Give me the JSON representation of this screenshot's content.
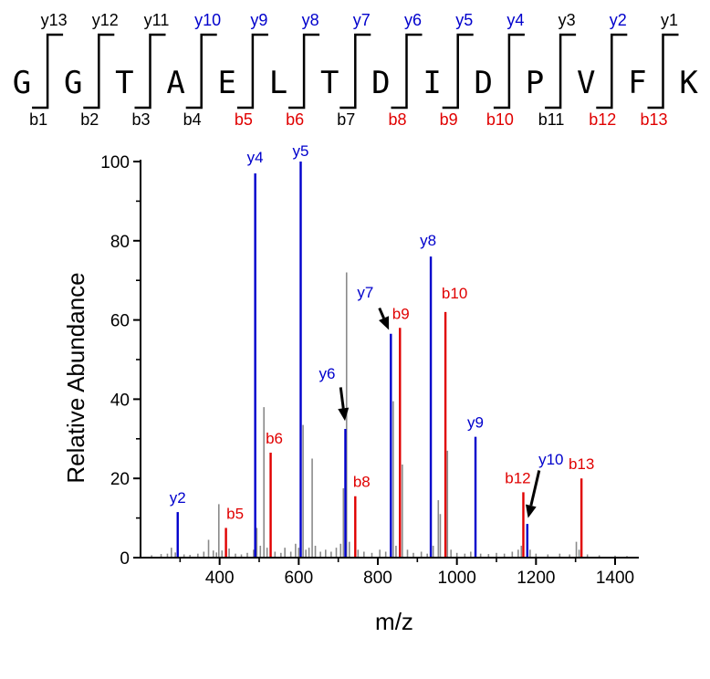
{
  "colors": {
    "y": "#0000cc",
    "b": "#e00000",
    "plain": "#000000",
    "noise": "#8a8a8a"
  },
  "sequence": {
    "residues": [
      "G",
      "G",
      "T",
      "A",
      "E",
      "L",
      "T",
      "D",
      "I",
      "D",
      "P",
      "V",
      "F",
      "K"
    ],
    "y_ions": [
      {
        "label": "y13",
        "observed": false
      },
      {
        "label": "y12",
        "observed": false
      },
      {
        "label": "y11",
        "observed": false
      },
      {
        "label": "y10",
        "observed": true
      },
      {
        "label": "y9",
        "observed": true
      },
      {
        "label": "y8",
        "observed": true
      },
      {
        "label": "y7",
        "observed": true
      },
      {
        "label": "y6",
        "observed": true
      },
      {
        "label": "y5",
        "observed": true
      },
      {
        "label": "y4",
        "observed": true
      },
      {
        "label": "y3",
        "observed": false
      },
      {
        "label": "y2",
        "observed": true
      },
      {
        "label": "y1",
        "observed": false
      }
    ],
    "b_ions": [
      {
        "label": "b1",
        "observed": false
      },
      {
        "label": "b2",
        "observed": false
      },
      {
        "label": "b3",
        "observed": false
      },
      {
        "label": "b4",
        "observed": false
      },
      {
        "label": "b5",
        "observed": true
      },
      {
        "label": "b6",
        "observed": true
      },
      {
        "label": "b7",
        "observed": false
      },
      {
        "label": "b8",
        "observed": true
      },
      {
        "label": "b9",
        "observed": true
      },
      {
        "label": "b10",
        "observed": true
      },
      {
        "label": "b11",
        "observed": false
      },
      {
        "label": "b12",
        "observed": true
      },
      {
        "label": "b13",
        "observed": true
      }
    ]
  },
  "chart_data": {
    "type": "bar",
    "xlabel": "m/z",
    "ylabel": "Relative Abundance",
    "xlim": [
      200,
      1460
    ],
    "ylim": [
      0,
      100
    ],
    "xticks": [
      400,
      600,
      800,
      1000,
      1200,
      1400
    ],
    "yticks": [
      0,
      20,
      40,
      60,
      80,
      100
    ],
    "series": [
      {
        "name": "y",
        "peaks": [
          {
            "mz": 294,
            "value": 11.5,
            "label": "y2"
          },
          {
            "mz": 490,
            "value": 97,
            "label": "y4"
          },
          {
            "mz": 605,
            "value": 100,
            "label": "y5"
          },
          {
            "mz": 718,
            "value": 32.5,
            "label": "y6"
          },
          {
            "mz": 833,
            "value": 56.5,
            "label": "y7"
          },
          {
            "mz": 934,
            "value": 76,
            "label": "y8"
          },
          {
            "mz": 1047,
            "value": 30.5,
            "label": "y9"
          },
          {
            "mz": 1178,
            "value": 8.5,
            "label": "y10"
          }
        ]
      },
      {
        "name": "b",
        "peaks": [
          {
            "mz": 416,
            "value": 7.5,
            "label": "b5"
          },
          {
            "mz": 529,
            "value": 26.5,
            "label": "b6"
          },
          {
            "mz": 743,
            "value": 15.5,
            "label": "b8"
          },
          {
            "mz": 856,
            "value": 58,
            "label": "b9"
          },
          {
            "mz": 971,
            "value": 62,
            "label": "b10"
          },
          {
            "mz": 1168,
            "value": 16.5,
            "label": "b12"
          },
          {
            "mz": 1315,
            "value": 20,
            "label": "b13"
          }
        ]
      },
      {
        "name": "other",
        "peaks": [
          {
            "mz": 228,
            "value": 0.6
          },
          {
            "mz": 252,
            "value": 0.9
          },
          {
            "mz": 268,
            "value": 1.0
          },
          {
            "mz": 278,
            "value": 2.5
          },
          {
            "mz": 288,
            "value": 1.3
          },
          {
            "mz": 310,
            "value": 0.8
          },
          {
            "mz": 325,
            "value": 0.7
          },
          {
            "mz": 345,
            "value": 1.0
          },
          {
            "mz": 360,
            "value": 1.5
          },
          {
            "mz": 372,
            "value": 4.5
          },
          {
            "mz": 384,
            "value": 1.8
          },
          {
            "mz": 392,
            "value": 1.3
          },
          {
            "mz": 398,
            "value": 13.5
          },
          {
            "mz": 406,
            "value": 1.8
          },
          {
            "mz": 424,
            "value": 2.3
          },
          {
            "mz": 440,
            "value": 1.0
          },
          {
            "mz": 455,
            "value": 0.8
          },
          {
            "mz": 470,
            "value": 1.2
          },
          {
            "mz": 486,
            "value": 2.0
          },
          {
            "mz": 494,
            "value": 7.5
          },
          {
            "mz": 503,
            "value": 3.0
          },
          {
            "mz": 512,
            "value": 38
          },
          {
            "mz": 520,
            "value": 2.5
          },
          {
            "mz": 540,
            "value": 1.5
          },
          {
            "mz": 555,
            "value": 1.2
          },
          {
            "mz": 565,
            "value": 2.5
          },
          {
            "mz": 580,
            "value": 1.5
          },
          {
            "mz": 592,
            "value": 3.5
          },
          {
            "mz": 600,
            "value": 2.5
          },
          {
            "mz": 611,
            "value": 33.5
          },
          {
            "mz": 618,
            "value": 2.0
          },
          {
            "mz": 626,
            "value": 2.5
          },
          {
            "mz": 634,
            "value": 25
          },
          {
            "mz": 642,
            "value": 3.0
          },
          {
            "mz": 655,
            "value": 1.5
          },
          {
            "mz": 668,
            "value": 2.0
          },
          {
            "mz": 682,
            "value": 1.5
          },
          {
            "mz": 695,
            "value": 2.5
          },
          {
            "mz": 706,
            "value": 3.5
          },
          {
            "mz": 713,
            "value": 17.5
          },
          {
            "mz": 721,
            "value": 72
          },
          {
            "mz": 728,
            "value": 4.0
          },
          {
            "mz": 750,
            "value": 2.0
          },
          {
            "mz": 765,
            "value": 1.5
          },
          {
            "mz": 785,
            "value": 1.2
          },
          {
            "mz": 805,
            "value": 2.0
          },
          {
            "mz": 820,
            "value": 1.5
          },
          {
            "mz": 839,
            "value": 39.5
          },
          {
            "mz": 846,
            "value": 3.0
          },
          {
            "mz": 862,
            "value": 23.5
          },
          {
            "mz": 875,
            "value": 2.0
          },
          {
            "mz": 890,
            "value": 1.2
          },
          {
            "mz": 910,
            "value": 1.5
          },
          {
            "mz": 925,
            "value": 1.0
          },
          {
            "mz": 940,
            "value": 3.0
          },
          {
            "mz": 953,
            "value": 14.5
          },
          {
            "mz": 958,
            "value": 11
          },
          {
            "mz": 976,
            "value": 27
          },
          {
            "mz": 985,
            "value": 2.0
          },
          {
            "mz": 1000,
            "value": 1.2
          },
          {
            "mz": 1020,
            "value": 1.0
          },
          {
            "mz": 1035,
            "value": 1.5
          },
          {
            "mz": 1060,
            "value": 1.0
          },
          {
            "mz": 1080,
            "value": 0.9
          },
          {
            "mz": 1100,
            "value": 1.2
          },
          {
            "mz": 1120,
            "value": 1.0
          },
          {
            "mz": 1140,
            "value": 1.5
          },
          {
            "mz": 1155,
            "value": 2.0
          },
          {
            "mz": 1163,
            "value": 3.0
          },
          {
            "mz": 1185,
            "value": 2.0
          },
          {
            "mz": 1200,
            "value": 1.0
          },
          {
            "mz": 1230,
            "value": 0.8
          },
          {
            "mz": 1260,
            "value": 1.0
          },
          {
            "mz": 1285,
            "value": 0.8
          },
          {
            "mz": 1302,
            "value": 4.0
          },
          {
            "mz": 1309,
            "value": 2.0
          },
          {
            "mz": 1330,
            "value": 0.8
          },
          {
            "mz": 1360,
            "value": 0.6
          },
          {
            "mz": 1400,
            "value": 0.5
          },
          {
            "mz": 1430,
            "value": 0.4
          }
        ]
      }
    ],
    "arrows": [
      {
        "label": "y6",
        "from_mz": 706,
        "from_value": 43,
        "to_mz": 717,
        "to_value": 34.5
      },
      {
        "label": "y7",
        "from_mz": 804,
        "from_value": 63,
        "to_mz": 828,
        "to_value": 57.5
      },
      {
        "label": "y10",
        "from_mz": 1208,
        "from_value": 22,
        "to_mz": 1180,
        "to_value": 10
      }
    ]
  }
}
